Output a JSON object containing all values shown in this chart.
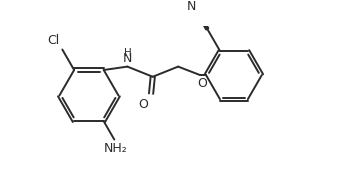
{
  "bg_color": "#ffffff",
  "line_color": "#2b2b2b",
  "line_width": 1.4,
  "font_size": 8.5,
  "figsize": [
    3.63,
    1.79
  ],
  "xlim": [
    0,
    363
  ],
  "ylim": [
    0,
    179
  ]
}
